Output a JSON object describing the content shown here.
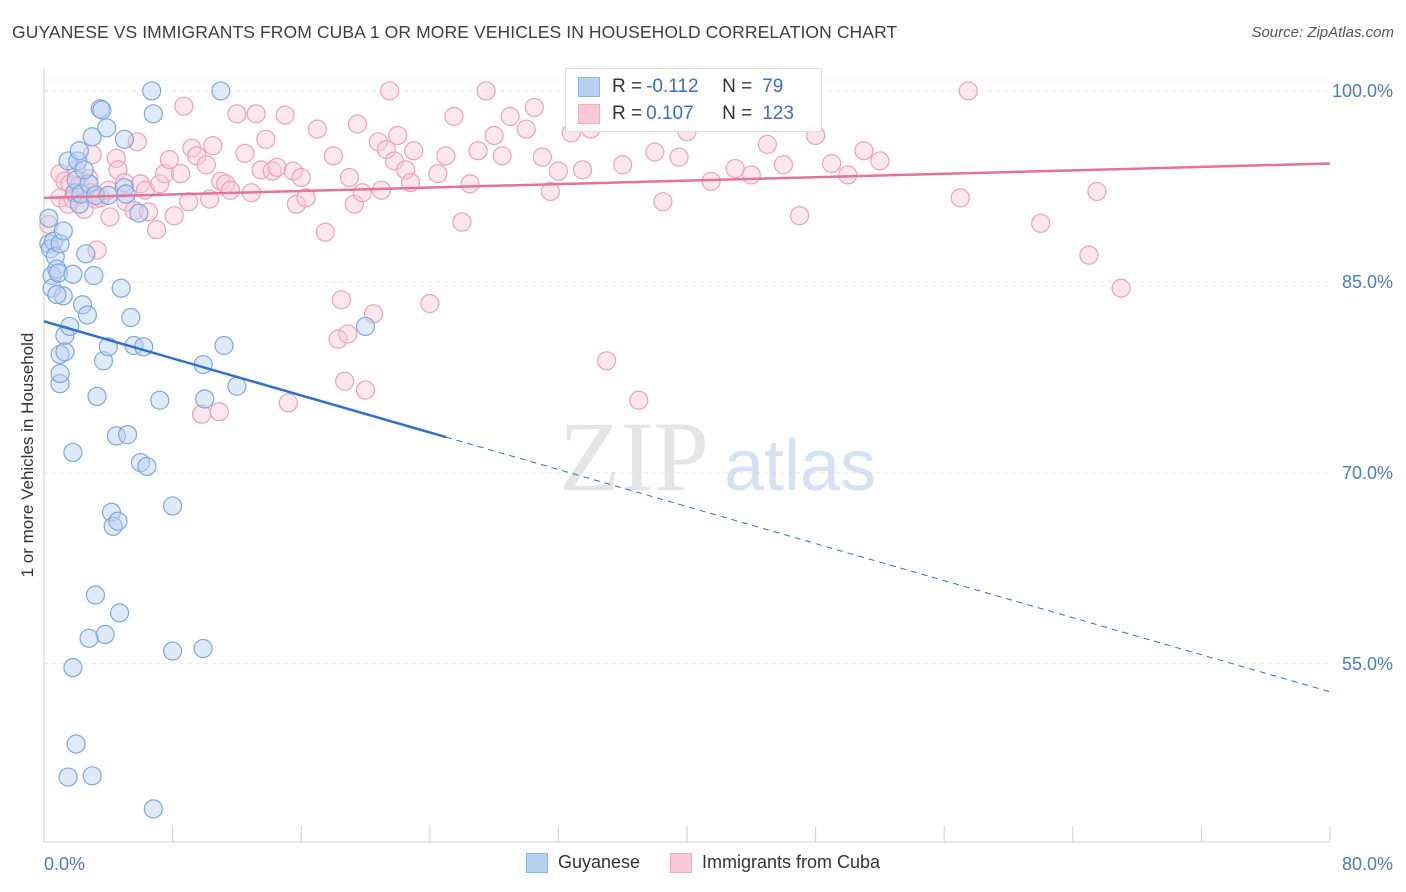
{
  "title": "GUYANESE VS IMMIGRANTS FROM CUBA 1 OR MORE VEHICLES IN HOUSEHOLD CORRELATION CHART",
  "source": "Source: ZipAtlas.com",
  "watermark": {
    "zip": "ZIP",
    "atlas": "atlas"
  },
  "legend_stats": [
    {
      "r_label": "R =",
      "r_value": "-0.112",
      "n_label": "N =",
      "n_value": "79"
    },
    {
      "r_label": "R =",
      "r_value": "0.107",
      "n_label": "N =",
      "n_value": "123"
    }
  ],
  "chart_data": {
    "type": "scatter",
    "title": "GUYANESE VS IMMIGRANTS FROM CUBA 1 OR MORE VEHICLES IN HOUSEHOLD CORRELATION CHART",
    "xlabel": "",
    "ylabel": "1 or more Vehicles in Household",
    "xlim": [
      0,
      80
    ],
    "ylim": [
      41,
      101.8
    ],
    "x_tick_labels": [
      "0.0%",
      "80.0%"
    ],
    "y_ticks": [
      55,
      70,
      85,
      100
    ],
    "y_tick_labels": [
      "55.0%",
      "70.0%",
      "85.0%",
      "100.0%"
    ],
    "grid": true,
    "legend_position": "bottom",
    "series": [
      {
        "name": "Guyanese",
        "color": "#8db5ea",
        "line_color": "#2f6fcf",
        "trend": {
          "x0": 0,
          "y0": 81.9,
          "x1": 80,
          "y1": 52.8,
          "solid_until_x": 25
        },
        "points": [
          [
            0.3,
            90
          ],
          [
            0.3,
            88
          ],
          [
            0.4,
            87.6
          ],
          [
            0.5,
            85.5
          ],
          [
            0.5,
            84.5
          ],
          [
            0.6,
            88.2
          ],
          [
            0.7,
            87
          ],
          [
            0.8,
            86
          ],
          [
            0.9,
            85.7
          ],
          [
            1.0,
            88
          ],
          [
            1.0,
            77
          ],
          [
            1.0,
            77.8
          ],
          [
            1.0,
            79.3
          ],
          [
            1.2,
            83.9
          ],
          [
            1.3,
            79.5
          ],
          [
            1.3,
            80.8
          ],
          [
            1.5,
            94.5
          ],
          [
            1.6,
            81.5
          ],
          [
            1.8,
            71.6
          ],
          [
            1.8,
            54.7
          ],
          [
            1.8,
            85.6
          ],
          [
            1.9,
            92
          ],
          [
            2.0,
            93
          ],
          [
            2.1,
            94.5
          ],
          [
            2.2,
            95.3
          ],
          [
            2.2,
            91.1
          ],
          [
            2.3,
            91.9
          ],
          [
            2.4,
            83.2
          ],
          [
            2.6,
            87.2
          ],
          [
            2.7,
            82.4
          ],
          [
            2.8,
            92.7
          ],
          [
            3.0,
            96.4
          ],
          [
            3.1,
            85.5
          ],
          [
            3.2,
            91.8
          ],
          [
            3.3,
            76
          ],
          [
            3.5,
            98.6
          ],
          [
            3.6,
            98.5
          ],
          [
            3.7,
            78.8
          ],
          [
            3.8,
            57.3
          ],
          [
            3.9,
            97.1
          ],
          [
            4.0,
            79.9
          ],
          [
            4.0,
            91.8
          ],
          [
            4.2,
            66.9
          ],
          [
            4.3,
            65.8
          ],
          [
            4.5,
            72.9
          ],
          [
            4.6,
            66.2
          ],
          [
            4.8,
            84.5
          ],
          [
            5.0,
            92.4
          ],
          [
            5.0,
            96.2
          ],
          [
            5.1,
            91.9
          ],
          [
            5.2,
            73
          ],
          [
            5.4,
            82.2
          ],
          [
            5.6,
            80
          ],
          [
            5.9,
            90.4
          ],
          [
            6.0,
            70.8
          ],
          [
            6.2,
            79.9
          ],
          [
            6.4,
            70.5
          ],
          [
            6.7,
            100
          ],
          [
            6.8,
            98.2
          ],
          [
            7.2,
            75.7
          ],
          [
            8.0,
            56
          ],
          [
            8.0,
            67.4
          ],
          [
            9.9,
            56.2
          ],
          [
            9.9,
            78.5
          ],
          [
            10.0,
            75.8
          ],
          [
            11.0,
            100
          ],
          [
            11.2,
            80
          ],
          [
            12.0,
            76.8
          ],
          [
            20.0,
            81.5
          ],
          [
            2.8,
            57
          ],
          [
            3.2,
            60.4
          ],
          [
            4.7,
            59
          ],
          [
            2.0,
            48.7
          ],
          [
            1.5,
            46.1
          ],
          [
            3.0,
            46.2
          ],
          [
            6.8,
            43.6
          ],
          [
            0.8,
            84
          ],
          [
            1.2,
            89
          ],
          [
            2.5,
            93.8
          ]
        ]
      },
      {
        "name": "Immigrants from Cuba",
        "color": "#f4a9c2",
        "line_color": "#e3739b",
        "trend": {
          "x0": 0,
          "y0": 91.6,
          "x1": 80,
          "y1": 94.3
        },
        "points": [
          [
            0.3,
            89.5
          ],
          [
            1.0,
            93.5
          ],
          [
            1.0,
            91.6
          ],
          [
            1.3,
            92.9
          ],
          [
            1.5,
            91.1
          ],
          [
            1.6,
            92.7
          ],
          [
            1.8,
            91.5
          ],
          [
            2.0,
            93.8
          ],
          [
            2.2,
            92.6
          ],
          [
            2.5,
            90.7
          ],
          [
            2.8,
            93.1
          ],
          [
            2.9,
            92
          ],
          [
            3.0,
            95
          ],
          [
            3.2,
            91.5
          ],
          [
            3.3,
            87.5
          ],
          [
            3.5,
            91.6
          ],
          [
            4.0,
            92.2
          ],
          [
            4.1,
            90.1
          ],
          [
            4.5,
            94.7
          ],
          [
            4.6,
            93.8
          ],
          [
            5.0,
            92.8
          ],
          [
            5.1,
            91.3
          ],
          [
            5.6,
            90.6
          ],
          [
            5.8,
            96
          ],
          [
            6.0,
            92.7
          ],
          [
            6.3,
            92.2
          ],
          [
            6.5,
            90.5
          ],
          [
            7.0,
            89.1
          ],
          [
            7.2,
            92.7
          ],
          [
            7.5,
            93.5
          ],
          [
            7.8,
            94.6
          ],
          [
            8.1,
            90.2
          ],
          [
            8.5,
            93.5
          ],
          [
            8.7,
            98.8
          ],
          [
            9.0,
            91.3
          ],
          [
            9.2,
            95.5
          ],
          [
            9.5,
            94.9
          ],
          [
            9.8,
            74.6
          ],
          [
            10.1,
            94.2
          ],
          [
            10.3,
            91.5
          ],
          [
            10.5,
            95.7
          ],
          [
            10.9,
            74.8
          ],
          [
            11.0,
            92.9
          ],
          [
            11.3,
            92.7
          ],
          [
            11.6,
            92.2
          ],
          [
            12.0,
            98.2
          ],
          [
            12.5,
            95.1
          ],
          [
            12.9,
            92
          ],
          [
            13.2,
            98.2
          ],
          [
            13.5,
            93.8
          ],
          [
            13.8,
            96.2
          ],
          [
            14.2,
            93.7
          ],
          [
            14.5,
            94
          ],
          [
            15.0,
            98.1
          ],
          [
            15.2,
            75.5
          ],
          [
            15.5,
            93.7
          ],
          [
            15.7,
            91.1
          ],
          [
            16.0,
            93.2
          ],
          [
            16.3,
            91.6
          ],
          [
            17.0,
            97
          ],
          [
            17.5,
            88.9
          ],
          [
            18.0,
            94.9
          ],
          [
            18.3,
            80.5
          ],
          [
            18.5,
            83.6
          ],
          [
            18.7,
            77.2
          ],
          [
            18.9,
            80.9
          ],
          [
            19.0,
            93.2
          ],
          [
            19.3,
            91.1
          ],
          [
            19.5,
            97.4
          ],
          [
            19.8,
            92
          ],
          [
            20.0,
            76.5
          ],
          [
            20.5,
            82.5
          ],
          [
            20.8,
            96
          ],
          [
            21.0,
            92.2
          ],
          [
            21.3,
            95.4
          ],
          [
            21.5,
            100
          ],
          [
            21.8,
            94.5
          ],
          [
            22.0,
            96.5
          ],
          [
            22.5,
            93.8
          ],
          [
            22.8,
            92.8
          ],
          [
            23.0,
            95.3
          ],
          [
            24.0,
            83.3
          ],
          [
            24.5,
            93.5
          ],
          [
            25.0,
            94.9
          ],
          [
            25.5,
            98
          ],
          [
            26.0,
            89.7
          ],
          [
            26.5,
            92.7
          ],
          [
            27.0,
            95.3
          ],
          [
            27.5,
            100
          ],
          [
            28.0,
            96.5
          ],
          [
            28.5,
            94.9
          ],
          [
            29.0,
            98
          ],
          [
            30.0,
            97
          ],
          [
            30.5,
            98.7
          ],
          [
            31.0,
            94.8
          ],
          [
            31.5,
            92.1
          ],
          [
            32.0,
            93.7
          ],
          [
            32.8,
            96.7
          ],
          [
            33.5,
            93.8
          ],
          [
            34.0,
            97
          ],
          [
            35.0,
            78.8
          ],
          [
            36.0,
            94.2
          ],
          [
            37.0,
            75.7
          ],
          [
            38.0,
            95.2
          ],
          [
            38.5,
            91.3
          ],
          [
            39.5,
            94.8
          ],
          [
            40.0,
            96.8
          ],
          [
            41.5,
            92.9
          ],
          [
            43.0,
            93.9
          ],
          [
            44.0,
            93.4
          ],
          [
            45.0,
            95.8
          ],
          [
            46.0,
            94.2
          ],
          [
            47.0,
            90.2
          ],
          [
            48.0,
            96.5
          ],
          [
            49.0,
            94.3
          ],
          [
            50.0,
            93.4
          ],
          [
            51.0,
            95.3
          ],
          [
            52.0,
            94.5
          ],
          [
            57.0,
            91.6
          ],
          [
            57.5,
            100
          ],
          [
            62.0,
            89.6
          ],
          [
            65.0,
            87.1
          ],
          [
            65.5,
            92.1
          ],
          [
            67.0,
            84.5
          ]
        ]
      }
    ]
  }
}
